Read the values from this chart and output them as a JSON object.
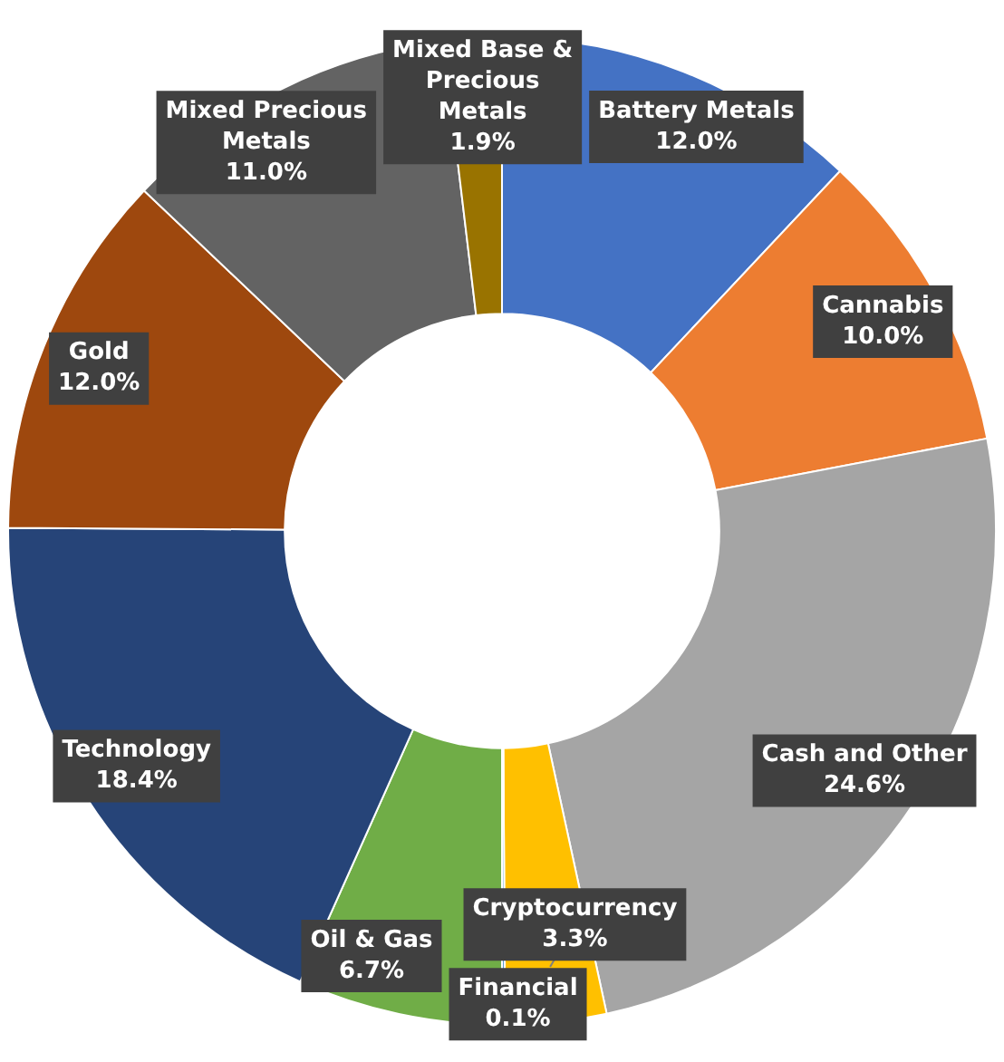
{
  "chart_data": {
    "type": "donut",
    "categories": [
      "Battery Metals",
      "Cannabis",
      "Cash and Other",
      "Cryptocurrency",
      "Financial",
      "Oil & Gas",
      "Technology",
      "Gold",
      "Mixed Precious Metals",
      "Mixed Base & Precious Metals"
    ],
    "values": [
      12.0,
      10.0,
      24.6,
      3.3,
      0.1,
      6.7,
      18.4,
      12.0,
      11.0,
      1.9
    ],
    "value_labels": [
      "12.0%",
      "10.0%",
      "24.6%",
      "3.3%",
      "0.1%",
      "6.7%",
      "18.4%",
      "12.0%",
      "11.0%",
      "1.9%"
    ],
    "colors": [
      "#4472c4",
      "#ed7d31",
      "#a5a5a5",
      "#ffc000",
      "#5b9bd5",
      "#70ad47",
      "#264478",
      "#9e480e",
      "#636363",
      "#997300"
    ],
    "legend": false
  }
}
